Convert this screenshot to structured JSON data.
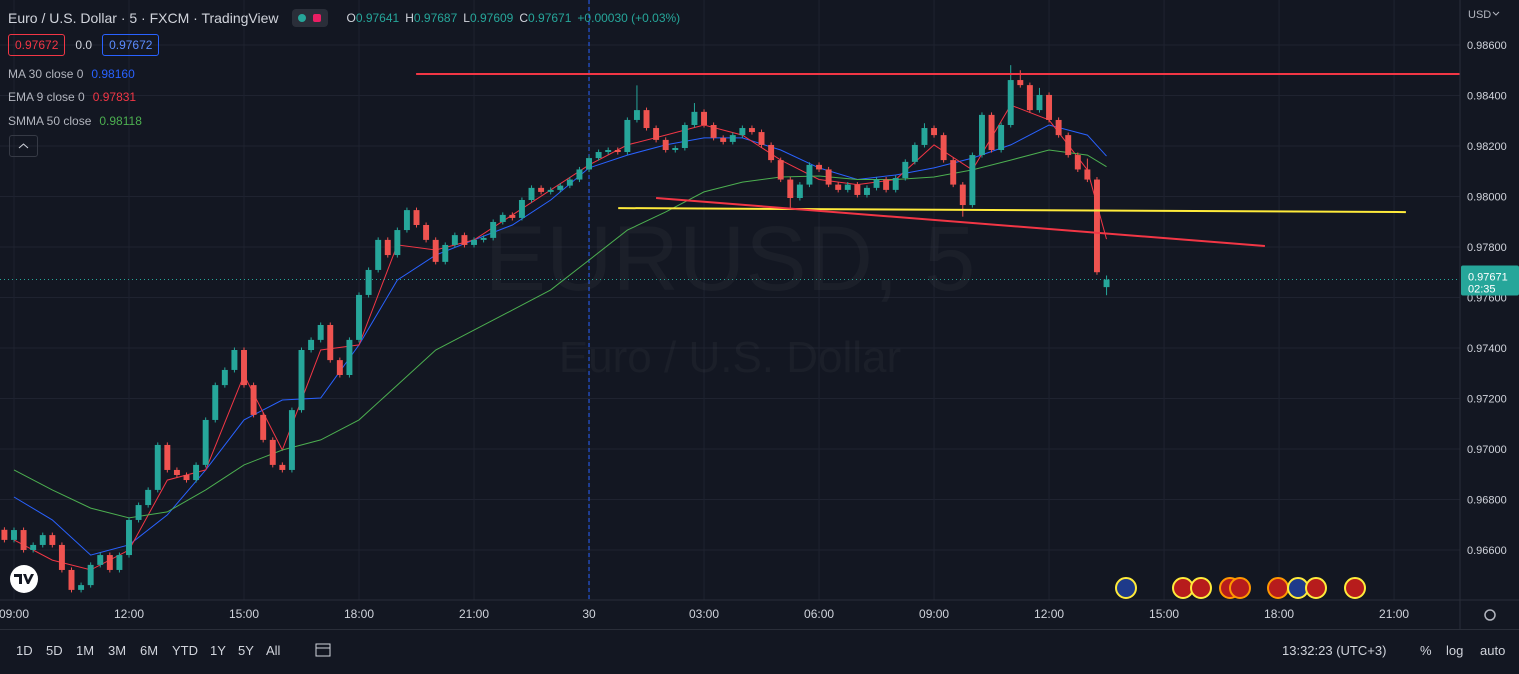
{
  "header": {
    "symbol": "Euro / U.S. Dollar · 5 · FXCM · TradingView",
    "ohlc": [
      {
        "key": "O",
        "value": "0.97641"
      },
      {
        "key": "H",
        "value": "0.97687"
      },
      {
        "key": "L",
        "value": "0.97609"
      },
      {
        "key": "C",
        "value": "0.97671"
      }
    ],
    "change": "+0.00030 (+0.03%)",
    "sell": "0.97672",
    "spread": "0.0",
    "buy": "0.97672"
  },
  "currency": "USD",
  "watermark": {
    "symbol": "EURUSD, 5",
    "description": "Euro / U.S. Dollar"
  },
  "chart_data": {
    "type": "candlestick",
    "x": [
      -0.25,
      0,
      0.25,
      0.5,
      0.75,
      1,
      1.25,
      1.5,
      1.75,
      2,
      2.25,
      2.5,
      2.75,
      3,
      3.25,
      3.5,
      3.75,
      4,
      4.25,
      4.5,
      4.75,
      5,
      5.25,
      5.5,
      5.75,
      6,
      6.25,
      6.5,
      6.75,
      7,
      7.25,
      7.5,
      7.75,
      8,
      8.25,
      8.5,
      8.75,
      9,
      9.25,
      9.5,
      9.75,
      10,
      10.25,
      10.5,
      10.75,
      11,
      11.25,
      11.5,
      11.75,
      12,
      12.25,
      12.5,
      12.75,
      13,
      13.25,
      13.5,
      13.75,
      14,
      14.25,
      14.5,
      14.75,
      15,
      15.25,
      15.5,
      15.75,
      16,
      16.25,
      16.5,
      16.75,
      17,
      17.25,
      17.5,
      17.75,
      18,
      18.25,
      18.5,
      18.75,
      19,
      19.25,
      19.5,
      19.75,
      20,
      20.25,
      20.5,
      20.75,
      21,
      21.25,
      21.5,
      21.75,
      22,
      22.25,
      22.5,
      22.75,
      23,
      23.25,
      23.5,
      23.75,
      24,
      24.25,
      24.5,
      24.75,
      25,
      25.25,
      25.5,
      25.75,
      26,
      26.25,
      26.5,
      26.75,
      27,
      27.25,
      27.5,
      27.75,
      28,
      28.25,
      28.5
    ],
    "open": [
      0.9668,
      0.9664,
      0.96679,
      0.966,
      0.9662,
      0.96659,
      0.9662,
      0.96521,
      0.96442,
      0.96461,
      0.96541,
      0.9658,
      0.96521,
      0.9658,
      0.96719,
      0.96778,
      0.96838,
      0.97016,
      0.96917,
      0.96897,
      0.96877,
      0.96937,
      0.97115,
      0.97253,
      0.97313,
      0.97392,
      0.97253,
      0.97135,
      0.97036,
      0.96937,
      0.96917,
      0.97154,
      0.97392,
      0.97432,
      0.97491,
      0.97352,
      0.97293,
      0.97432,
      0.9761,
      0.97709,
      0.97828,
      0.97768,
      0.97867,
      0.97946,
      0.97887,
      0.97828,
      0.97741,
      0.97808,
      0.97847,
      0.97808,
      0.97828,
      0.97836,
      0.97899,
      0.97927,
      0.97915,
      0.97986,
      0.98034,
      0.98018,
      0.98026,
      0.98043,
      0.98067,
      0.98107,
      0.98152,
      0.98176,
      0.98184,
      0.98176,
      0.98303,
      0.98342,
      0.98271,
      0.98224,
      0.98184,
      0.98192,
      0.98283,
      0.98335,
      0.98283,
      0.98232,
      0.98216,
      0.98243,
      0.98271,
      0.98255,
      0.98204,
      0.98144,
      0.98067,
      0.97994,
      0.98047,
      0.98125,
      0.98107,
      0.98047,
      0.98026,
      0.98047,
      0.98006,
      0.98034,
      0.98067,
      0.98026,
      0.98073,
      0.98137,
      0.98204,
      0.98271,
      0.98243,
      0.98144,
      0.98047,
      0.97966,
      0.98164,
      0.98323,
      0.98184,
      0.98283,
      0.98461,
      0.98441,
      0.98342,
      0.98402,
      0.98303,
      0.98243,
      0.98164,
      0.98107,
      0.98067,
      0.97641
    ],
    "high": [
      0.9669,
      0.96689,
      0.96689,
      0.9663,
      0.96669,
      0.96669,
      0.9663,
      0.96531,
      0.96471,
      0.96551,
      0.9659,
      0.9659,
      0.9659,
      0.96729,
      0.96788,
      0.96848,
      0.97026,
      0.97026,
      0.96927,
      0.96907,
      0.96947,
      0.97125,
      0.97263,
      0.97323,
      0.97402,
      0.97402,
      0.97263,
      0.97145,
      0.97046,
      0.96947,
      0.97164,
      0.97402,
      0.97442,
      0.97501,
      0.97501,
      0.97362,
      0.97442,
      0.9762,
      0.97719,
      0.97838,
      0.97838,
      0.97877,
      0.97956,
      0.97956,
      0.97897,
      0.97838,
      0.97818,
      0.97857,
      0.97857,
      0.97838,
      0.97846,
      0.97909,
      0.97937,
      0.97937,
      0.97996,
      0.98044,
      0.98044,
      0.98036,
      0.98053,
      0.98077,
      0.98117,
      0.98162,
      0.98186,
      0.98194,
      0.98194,
      0.98313,
      0.9844,
      0.98352,
      0.98281,
      0.98234,
      0.98202,
      0.98293,
      0.9837,
      0.98345,
      0.98293,
      0.98242,
      0.98253,
      0.98281,
      0.98281,
      0.98265,
      0.98214,
      0.98154,
      0.98077,
      0.98057,
      0.98135,
      0.98135,
      0.98117,
      0.98057,
      0.98057,
      0.98057,
      0.98044,
      0.98077,
      0.98077,
      0.98083,
      0.98147,
      0.98214,
      0.9829,
      0.98281,
      0.98253,
      0.98154,
      0.98057,
      0.98174,
      0.98333,
      0.98333,
      0.98293,
      0.9852,
      0.985,
      0.98451,
      0.9843,
      0.98412,
      0.98313,
      0.98253,
      0.98174,
      0.9815,
      0.98077,
      0.97687
    ],
    "low": [
      0.9663,
      0.9663,
      0.9659,
      0.9659,
      0.9661,
      0.9661,
      0.96511,
      0.96432,
      0.96432,
      0.96451,
      0.96531,
      0.96511,
      0.96511,
      0.9657,
      0.96709,
      0.96768,
      0.96828,
      0.96907,
      0.96887,
      0.96867,
      0.96867,
      0.96927,
      0.97105,
      0.97243,
      0.97303,
      0.97243,
      0.97125,
      0.97026,
      0.96927,
      0.96907,
      0.96907,
      0.97144,
      0.97382,
      0.97422,
      0.97342,
      0.97283,
      0.97283,
      0.97422,
      0.976,
      0.97699,
      0.97758,
      0.97758,
      0.97857,
      0.97877,
      0.97818,
      0.97731,
      0.97731,
      0.97798,
      0.97798,
      0.97798,
      0.97818,
      0.97826,
      0.97889,
      0.97905,
      0.97905,
      0.97976,
      0.98008,
      0.98008,
      0.98016,
      0.98033,
      0.98057,
      0.98097,
      0.98142,
      0.98166,
      0.98166,
      0.98166,
      0.98293,
      0.98261,
      0.98214,
      0.98174,
      0.98174,
      0.98182,
      0.98273,
      0.98273,
      0.98222,
      0.98206,
      0.98206,
      0.98233,
      0.98245,
      0.98194,
      0.98134,
      0.98057,
      0.9795,
      0.97984,
      0.98037,
      0.98097,
      0.98037,
      0.98016,
      0.98016,
      0.97996,
      0.97996,
      0.98024,
      0.98016,
      0.98016,
      0.98063,
      0.98127,
      0.98194,
      0.98233,
      0.98134,
      0.98037,
      0.9792,
      0.97956,
      0.98154,
      0.98174,
      0.98174,
      0.98273,
      0.98431,
      0.98332,
      0.98332,
      0.98293,
      0.98233,
      0.98154,
      0.98097,
      0.98057,
      0.9769,
      0.97609
    ],
    "close": [
      0.9664,
      0.96679,
      0.966,
      0.9662,
      0.96659,
      0.9662,
      0.96521,
      0.96442,
      0.96461,
      0.96541,
      0.9658,
      0.96521,
      0.9658,
      0.96719,
      0.96778,
      0.96838,
      0.97016,
      0.96917,
      0.96897,
      0.96877,
      0.96937,
      0.97115,
      0.97253,
      0.97313,
      0.97392,
      0.97253,
      0.97135,
      0.97036,
      0.96937,
      0.96917,
      0.97154,
      0.97392,
      0.97432,
      0.97491,
      0.97352,
      0.97293,
      0.97432,
      0.9761,
      0.97709,
      0.97828,
      0.97768,
      0.97867,
      0.97946,
      0.97887,
      0.97828,
      0.97741,
      0.97808,
      0.97847,
      0.97808,
      0.97828,
      0.97836,
      0.97899,
      0.97927,
      0.97915,
      0.97986,
      0.98034,
      0.98018,
      0.98026,
      0.98043,
      0.98067,
      0.98107,
      0.98152,
      0.98176,
      0.98184,
      0.98176,
      0.98303,
      0.98342,
      0.98271,
      0.98224,
      0.98184,
      0.98192,
      0.98283,
      0.98335,
      0.98283,
      0.98232,
      0.98216,
      0.98243,
      0.98271,
      0.98255,
      0.98204,
      0.98144,
      0.98067,
      0.97994,
      0.98047,
      0.98125,
      0.98107,
      0.98047,
      0.98026,
      0.98047,
      0.98006,
      0.98034,
      0.98067,
      0.98026,
      0.98073,
      0.98137,
      0.98204,
      0.98271,
      0.98243,
      0.98144,
      0.98047,
      0.97966,
      0.98164,
      0.98323,
      0.98184,
      0.98283,
      0.98461,
      0.98441,
      0.98342,
      0.98402,
      0.98303,
      0.98243,
      0.98164,
      0.98107,
      0.98067,
      0.977,
      0.97671
    ],
    "up_color": "#26a69a",
    "down_color": "#ef5350",
    "countdown": "02:35",
    "indicators": [
      {
        "name": "MA 30 close 0",
        "color": "#2962ff",
        "last_value_label": "0.98160",
        "x": [
          0,
          1,
          2,
          3,
          4,
          5,
          6,
          7,
          8,
          9,
          10,
          11,
          12,
          13,
          14,
          15,
          16,
          17,
          18,
          19,
          20,
          21,
          22,
          23,
          24,
          25,
          26,
          27,
          28,
          28.5
        ],
        "values": [
          0.9681,
          0.96719,
          0.9658,
          0.9662,
          0.96739,
          0.96917,
          0.97115,
          0.97194,
          0.97202,
          0.97412,
          0.97669,
          0.97768,
          0.97828,
          0.97887,
          0.97986,
          0.98113,
          0.98164,
          0.98204,
          0.98232,
          0.98232,
          0.98184,
          0.98113,
          0.98067,
          0.98085,
          0.98113,
          0.98152,
          0.98204,
          0.98283,
          0.98243,
          0.9816
        ]
      },
      {
        "name": "EMA 9 close 0",
        "color": "#f23645",
        "x": [
          0,
          1,
          2,
          3,
          4,
          5,
          6,
          7,
          8,
          9,
          10,
          11,
          12,
          13,
          14,
          15,
          16,
          17,
          18,
          19,
          20,
          21,
          22,
          23,
          24,
          25,
          26,
          27,
          28,
          28.5
        ],
        "values": [
          0.9664,
          0.9656,
          0.96521,
          0.966,
          0.96877,
          0.96917,
          0.97293,
          0.96996,
          0.97392,
          0.97412,
          0.97808,
          0.97788,
          0.97828,
          0.97927,
          0.98026,
          0.98125,
          0.98204,
          0.98243,
          0.98283,
          0.98243,
          0.98144,
          0.98067,
          0.98047,
          0.98067,
          0.98204,
          0.98105,
          0.98362,
          0.98303,
          0.98105,
          0.97831
        ]
      },
      {
        "name": "SMMA 50 close",
        "color": "#4caf50",
        "x": [
          0,
          1,
          2,
          3,
          4,
          5,
          6,
          7,
          8,
          9,
          10,
          11,
          12,
          13,
          14,
          15,
          16,
          17,
          18,
          19,
          20,
          21,
          22,
          23,
          24,
          25,
          26,
          27,
          28,
          28.5
        ],
        "values": [
          0.96917,
          0.96838,
          0.96766,
          0.96727,
          0.96751,
          0.96838,
          0.96937,
          0.96996,
          0.97036,
          0.97115,
          0.97253,
          0.97392,
          0.97471,
          0.9755,
          0.9763,
          0.97748,
          0.97867,
          0.97939,
          0.98018,
          0.98057,
          0.98077,
          0.98081,
          0.98067,
          0.98067,
          0.98077,
          0.98105,
          0.98144,
          0.98184,
          0.98164,
          0.98118
        ]
      }
    ],
    "drawings": [
      {
        "color": "#f23645",
        "x": [
          10.49,
          37.72
        ],
        "y": [
          0.98485,
          0.98485
        ]
      },
      {
        "color": "#ffeb3b",
        "x": [
          15.76,
          36.31
        ],
        "y": [
          0.97954,
          0.97938
        ]
      },
      {
        "color": "#f23645",
        "x": [
          16.75,
          32.63
        ],
        "y": [
          0.97994,
          0.97804
        ]
      }
    ],
    "xlim": [
      -0.365,
      37.72
    ],
    "ylim": [
      0.96402,
      0.98778
    ],
    "xticks": [
      {
        "value": 0,
        "label": "09:00"
      },
      {
        "value": 3,
        "label": "12:00"
      },
      {
        "value": 6,
        "label": "15:00"
      },
      {
        "value": 9,
        "label": "18:00"
      },
      {
        "value": 12,
        "label": "21:00"
      },
      {
        "value": 15,
        "label": "30"
      },
      {
        "value": 18,
        "label": "03:00"
      },
      {
        "value": 21,
        "label": "06:00"
      },
      {
        "value": 24,
        "label": "09:00"
      },
      {
        "value": 27,
        "label": "12:00"
      },
      {
        "value": 30,
        "label": "15:00"
      },
      {
        "value": 33,
        "label": "18:00"
      },
      {
        "value": 36,
        "label": "21:00"
      }
    ],
    "yticks": [
      {
        "value": 0.986,
        "label": "0.98600"
      },
      {
        "value": 0.984,
        "label": "0.98400"
      },
      {
        "value": 0.982,
        "label": "0.98200"
      },
      {
        "value": 0.98,
        "label": "0.98000"
      },
      {
        "value": 0.978,
        "label": "0.97800"
      },
      {
        "value": 0.976,
        "label": "0.97600"
      },
      {
        "value": 0.974,
        "label": "0.97400"
      },
      {
        "value": 0.972,
        "label": "0.97200"
      },
      {
        "value": 0.97,
        "label": "0.97000"
      },
      {
        "value": 0.968,
        "label": "0.96800"
      },
      {
        "value": 0.966,
        "label": "0.96600"
      }
    ],
    "grid": true
  },
  "toolbar": {
    "ranges": [
      "1D",
      "5D",
      "1M",
      "3M",
      "6M",
      "YTD",
      "1Y",
      "5Y",
      "All"
    ],
    "clock": "13:32:23 (UTC+3)",
    "options": [
      "%",
      "log",
      "auto"
    ]
  }
}
